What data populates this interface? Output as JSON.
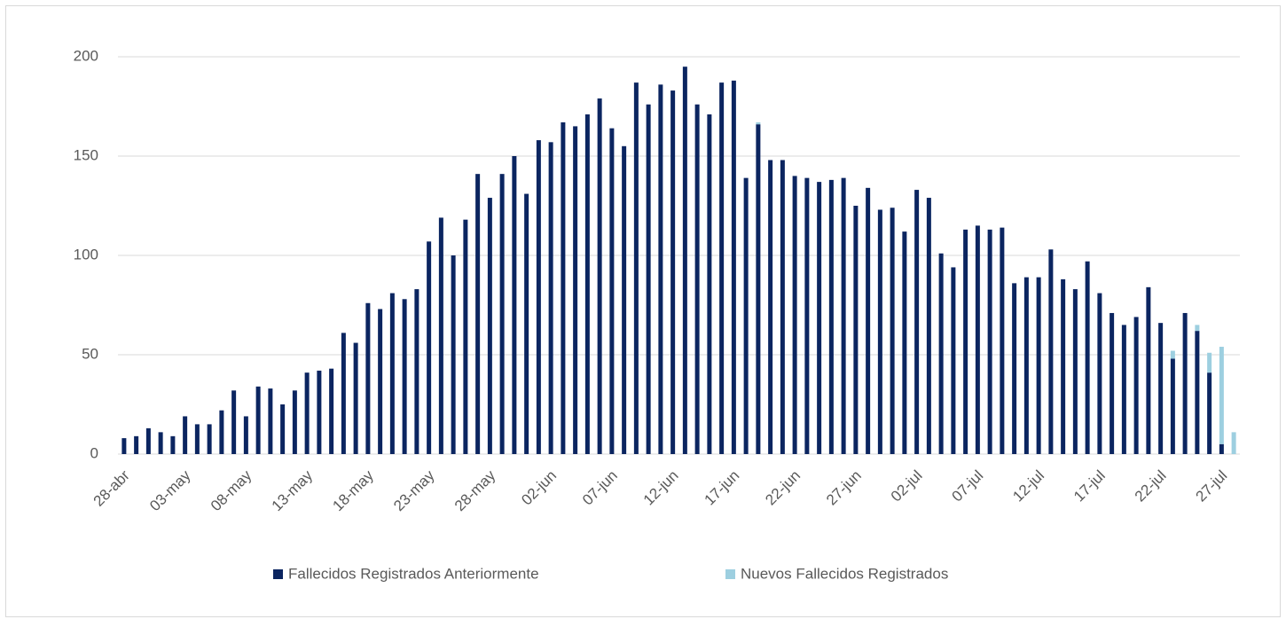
{
  "chart_data": {
    "type": "stacked-bar",
    "categories": [
      "28-abr",
      null,
      null,
      null,
      null,
      "03-may",
      null,
      null,
      null,
      null,
      "08-may",
      null,
      null,
      null,
      null,
      "13-may",
      null,
      null,
      null,
      null,
      "18-may",
      null,
      null,
      null,
      null,
      "23-may",
      null,
      null,
      null,
      null,
      "28-may",
      null,
      null,
      null,
      null,
      "02-jun",
      null,
      null,
      null,
      null,
      "07-jun",
      null,
      null,
      null,
      null,
      "12-jun",
      null,
      null,
      null,
      null,
      "17-jun",
      null,
      null,
      null,
      null,
      "22-jun",
      null,
      null,
      null,
      null,
      "27-jun",
      null,
      null,
      null,
      null,
      "02-jul",
      null,
      null,
      null,
      null,
      "07-jul",
      null,
      null,
      null,
      null,
      "12-jul",
      null,
      null,
      null,
      null,
      "17-jul",
      null,
      null,
      null,
      null,
      "22-jul",
      null,
      null,
      null,
      null,
      "27-jul",
      null
    ],
    "series": [
      {
        "name": "Fallecidos Registrados Anteriormente",
        "color": "#0b2560",
        "values": [
          8,
          9,
          13,
          11,
          9,
          19,
          15,
          15,
          22,
          32,
          19,
          34,
          33,
          25,
          32,
          41,
          42,
          43,
          61,
          56,
          76,
          73,
          81,
          78,
          83,
          107,
          119,
          100,
          118,
          141,
          129,
          141,
          150,
          131,
          158,
          157,
          167,
          165,
          171,
          179,
          164,
          155,
          187,
          176,
          186,
          183,
          195,
          176,
          171,
          187,
          188,
          139,
          166,
          148,
          148,
          140,
          139,
          137,
          138,
          139,
          125,
          134,
          123,
          124,
          112,
          133,
          129,
          101,
          94,
          113,
          115,
          113,
          114,
          86,
          89,
          89,
          103,
          88,
          83,
          97,
          81,
          71,
          65,
          69,
          84,
          66,
          48,
          71,
          62,
          41,
          5,
          0
        ]
      },
      {
        "name": "Nuevos Fallecidos Registrados",
        "color": "#9dcfe0",
        "values": [
          0,
          0,
          0,
          0,
          0,
          0,
          0,
          0,
          0,
          0,
          0,
          0,
          0,
          0,
          0,
          0,
          0,
          0,
          0,
          0,
          0,
          0,
          0,
          0,
          0,
          0,
          0,
          0,
          0,
          0,
          0,
          0,
          0,
          0,
          0,
          0,
          0,
          0,
          0,
          0,
          0,
          0,
          0,
          0,
          0,
          0,
          0,
          0,
          0,
          0,
          0,
          0,
          1,
          0,
          0,
          0,
          0,
          0,
          0,
          0,
          0,
          0,
          0,
          0,
          0,
          0,
          0,
          0,
          0,
          0,
          0,
          0,
          0,
          0,
          0,
          0,
          0,
          0,
          0,
          0,
          0,
          0,
          0,
          0,
          0,
          0,
          4,
          0,
          3,
          10,
          49,
          11
        ]
      }
    ],
    "ylim": [
      0,
      200
    ],
    "yticks": [
      0,
      50,
      100,
      150,
      200
    ],
    "grid": true
  }
}
